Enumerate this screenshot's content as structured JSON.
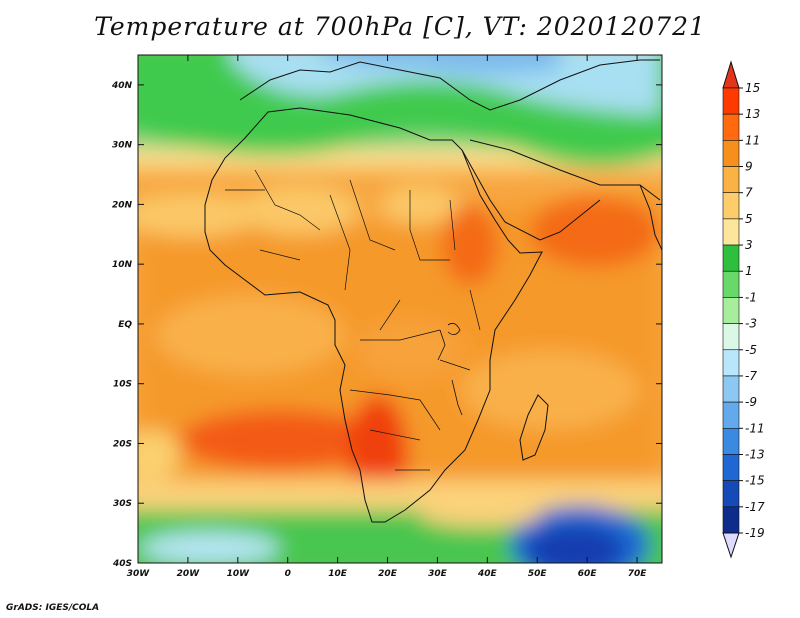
{
  "title": "Temperature at 700hPa [C], VT: 2020120721",
  "credit": "GrADS: IGES/COLA",
  "map": {
    "lon_range": [
      -30,
      75
    ],
    "lat_range": [
      -40,
      45
    ],
    "lat_labels": [
      "40S",
      "30S",
      "20S",
      "10S",
      "EQ",
      "10N",
      "20N",
      "30N",
      "40N"
    ],
    "lat_values": [
      -40,
      -30,
      -20,
      -10,
      0,
      10,
      20,
      30,
      40
    ],
    "lon_labels": [
      "30W",
      "20W",
      "10W",
      "0",
      "10E",
      "20E",
      "30E",
      "40E",
      "50E",
      "60E",
      "70E"
    ],
    "lon_values": [
      -30,
      -20,
      -10,
      0,
      10,
      20,
      30,
      40,
      50,
      60,
      70
    ],
    "units": "C"
  },
  "colorbar": {
    "labels": [
      "15",
      "13",
      "11",
      "9",
      "7",
      "5",
      "3",
      "1",
      "-1",
      "-3",
      "-5",
      "-7",
      "-9",
      "-11",
      "-13",
      "-15",
      "-17",
      "-19"
    ],
    "colors": [
      "#ff3a00",
      "#ff6a10",
      "#f78f1c",
      "#fab244",
      "#fccd6a",
      "#fbe69c",
      "#2ebf3e",
      "#68d86a",
      "#a6ee9c",
      "#dbf8e6",
      "#b8e6fa",
      "#8cc8f2",
      "#63aaec",
      "#3b8ae2",
      "#1f68d4",
      "#164ab6",
      "#0e2c8c"
    ],
    "top_color": "#e3351c",
    "bottom_color": "#dcdcff"
  }
}
